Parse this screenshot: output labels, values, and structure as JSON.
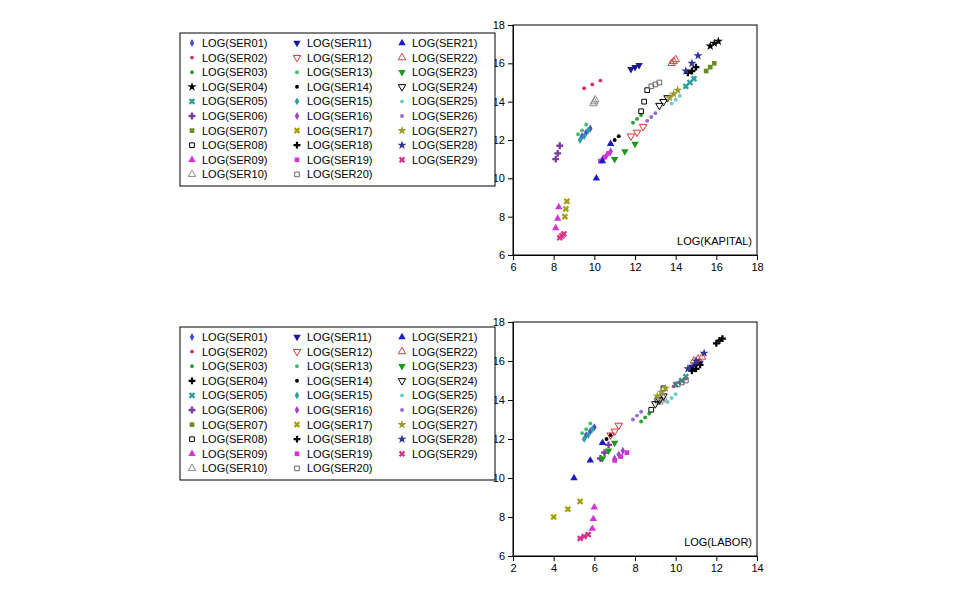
{
  "chart_data": [
    {
      "type": "scatter",
      "x_label": "LOG(KAPITAL)",
      "xlim": [
        6,
        18
      ],
      "ylim": [
        6,
        18
      ],
      "xticks": [
        6,
        8,
        10,
        12,
        14,
        16,
        18
      ],
      "yticks": [
        6,
        8,
        10,
        12,
        14,
        16,
        18
      ],
      "legend": "left",
      "series": [
        {
          "name": "LOG(SER01)",
          "color": "#4b4bd6",
          "marker": "diamond",
          "x": [
            9.4,
            9.6,
            9.8
          ],
          "values": [
            12.2,
            12.4,
            12.6
          ]
        },
        {
          "name": "LOG(SER02)",
          "color": "#d6336b",
          "marker": "dot",
          "x": [
            9.5,
            9.9,
            10.3
          ],
          "values": [
            14.7,
            14.9,
            15.1
          ]
        },
        {
          "name": "LOG(SER03)",
          "color": "#33a033",
          "marker": "dot",
          "x": [
            11.9,
            12.1,
            12.3
          ],
          "values": [
            12.9,
            13.1,
            13.3
          ]
        },
        {
          "name": "LOG(SER04)",
          "color": "#000000",
          "marker": "star",
          "x": [
            15.7,
            15.9,
            16.1
          ],
          "values": [
            16.9,
            17.05,
            17.15
          ]
        },
        {
          "name": "LOG(SER05)",
          "color": "#2a9d9d",
          "marker": "x",
          "x": [
            14.5,
            14.7,
            14.9
          ],
          "values": [
            14.8,
            15.0,
            15.2
          ]
        },
        {
          "name": "LOG(SER06)",
          "color": "#7a3aa0",
          "marker": "plus",
          "x": [
            8.1,
            8.2,
            8.3
          ],
          "values": [
            11.0,
            11.3,
            11.7
          ]
        },
        {
          "name": "LOG(SER07)",
          "color": "#6b8e23",
          "marker": "square",
          "x": [
            15.5,
            15.7,
            15.9
          ],
          "values": [
            15.6,
            15.8,
            16.0
          ]
        },
        {
          "name": "LOG(SER08)",
          "color": "#000000",
          "marker": "square-open",
          "x": [
            12.3,
            12.45,
            12.6
          ],
          "values": [
            13.5,
            14.0,
            14.6
          ]
        },
        {
          "name": "LOG(SER09)",
          "color": "#d633d6",
          "marker": "triangle",
          "x": [
            8.1,
            8.2,
            8.25
          ],
          "values": [
            7.4,
            7.9,
            8.5
          ]
        },
        {
          "name": "LOG(SER10)",
          "color": "#8c8c8c",
          "marker": "triangle-open",
          "x": [
            9.95,
            10.0,
            10.05
          ],
          "values": [
            13.9,
            14.0,
            14.1
          ]
        },
        {
          "name": "LOG(SER11)",
          "color": "#1a1a99",
          "marker": "triangle-down",
          "x": [
            11.8,
            12.0,
            12.2
          ],
          "values": [
            15.7,
            15.8,
            15.9
          ]
        },
        {
          "name": "LOG(SER12)",
          "color": "#e03030",
          "marker": "triangle-down-open",
          "x": [
            11.8,
            12.1,
            12.4
          ],
          "values": [
            12.2,
            12.4,
            12.7
          ]
        },
        {
          "name": "LOG(SER13)",
          "color": "#40c070",
          "marker": "dot",
          "x": [
            9.2,
            9.4,
            9.6
          ],
          "values": [
            12.3,
            12.5,
            12.8
          ]
        },
        {
          "name": "LOG(SER14)",
          "color": "#000000",
          "marker": "dot",
          "x": [
            10.8,
            11.0,
            11.2
          ],
          "values": [
            11.8,
            12.0,
            12.2
          ]
        },
        {
          "name": "LOG(SER15)",
          "color": "#2aa0a0",
          "marker": "diamond",
          "x": [
            9.3,
            9.5,
            9.7
          ],
          "values": [
            12.0,
            12.2,
            12.5
          ]
        },
        {
          "name": "LOG(SER16)",
          "color": "#a040d0",
          "marker": "diamond",
          "x": [
            10.4,
            10.6,
            10.8
          ],
          "values": [
            11.0,
            11.2,
            11.4
          ]
        },
        {
          "name": "LOG(SER17)",
          "color": "#a0a000",
          "marker": "x",
          "x": [
            8.55,
            8.6,
            8.65
          ],
          "values": [
            8.0,
            8.4,
            8.8
          ]
        },
        {
          "name": "LOG(SER18)",
          "color": "#000000",
          "marker": "plus",
          "x": [
            14.6,
            14.8,
            15.0
          ],
          "values": [
            15.5,
            15.6,
            15.8
          ]
        },
        {
          "name": "LOG(SER19)",
          "color": "#d633d6",
          "marker": "square",
          "x": [
            10.3,
            10.5,
            10.7
          ],
          "values": [
            10.9,
            11.1,
            11.3
          ]
        },
        {
          "name": "LOG(SER20)",
          "color": "#666666",
          "marker": "square-open",
          "x": [
            12.8,
            13.0,
            13.2
          ],
          "values": [
            14.8,
            14.9,
            15.0
          ]
        },
        {
          "name": "LOG(SER21)",
          "color": "#1a1acc",
          "marker": "triangle",
          "x": [
            10.1,
            10.4,
            10.8
          ],
          "values": [
            10.0,
            10.9,
            11.8
          ]
        },
        {
          "name": "LOG(SER22)",
          "color": "#d64040",
          "marker": "triangle-open",
          "x": [
            13.8,
            13.9,
            14.0
          ],
          "values": [
            16.0,
            16.1,
            16.2
          ]
        },
        {
          "name": "LOG(SER23)",
          "color": "#1a9a1a",
          "marker": "triangle-down",
          "x": [
            11.0,
            11.5,
            12.0
          ],
          "values": [
            11.0,
            11.4,
            11.8
          ]
        },
        {
          "name": "LOG(SER24)",
          "color": "#000000",
          "marker": "triangle-down-open",
          "x": [
            13.2,
            13.4,
            13.6
          ],
          "values": [
            13.8,
            14.0,
            14.2
          ]
        },
        {
          "name": "LOG(SER25)",
          "color": "#70c8c8",
          "marker": "dot",
          "x": [
            13.8,
            14.0,
            14.2
          ],
          "values": [
            13.9,
            14.1,
            14.3
          ]
        },
        {
          "name": "LOG(SER26)",
          "color": "#9a6ad0",
          "marker": "dot",
          "x": [
            12.6,
            12.8,
            13.0
          ],
          "values": [
            13.0,
            13.2,
            13.4
          ]
        },
        {
          "name": "LOG(SER27)",
          "color": "#9a9a30",
          "marker": "star",
          "x": [
            13.7,
            13.9,
            14.1
          ],
          "values": [
            14.2,
            14.4,
            14.6
          ]
        },
        {
          "name": "LOG(SER28)",
          "color": "#33339a",
          "marker": "star",
          "x": [
            14.5,
            14.8,
            15.1
          ],
          "values": [
            15.6,
            16.0,
            16.4
          ]
        },
        {
          "name": "LOG(SER29)",
          "color": "#d6338a",
          "marker": "x",
          "x": [
            8.3,
            8.4,
            8.5
          ],
          "values": [
            6.9,
            7.0,
            7.1
          ]
        }
      ]
    },
    {
      "type": "scatter",
      "x_label": "LOG(LABOR)",
      "xlim": [
        2,
        14
      ],
      "ylim": [
        6,
        18
      ],
      "xticks": [
        2,
        4,
        6,
        8,
        10,
        12,
        14
      ],
      "yticks": [
        6,
        8,
        10,
        12,
        14,
        16,
        18
      ],
      "legend": "left",
      "series": [
        {
          "name": "LOG(SER01)",
          "color": "#4b4bd6",
          "marker": "diamond",
          "x": [
            5.6,
            5.8,
            6.0
          ],
          "values": [
            12.2,
            12.4,
            12.6
          ]
        },
        {
          "name": "LOG(SER02)",
          "color": "#d6336b",
          "marker": "dot",
          "x": [
            9.9,
            10.2,
            10.5
          ],
          "values": [
            14.7,
            14.9,
            15.1
          ]
        },
        {
          "name": "LOG(SER03)",
          "color": "#33a033",
          "marker": "dot",
          "x": [
            8.3,
            8.5,
            8.7
          ],
          "values": [
            12.9,
            13.1,
            13.3
          ]
        },
        {
          "name": "LOG(SER04)",
          "color": "#000000",
          "marker": "plus",
          "x": [
            12.0,
            12.15,
            12.3
          ],
          "values": [
            16.9,
            17.05,
            17.15
          ]
        },
        {
          "name": "LOG(SER05)",
          "color": "#2a9d9d",
          "marker": "x",
          "x": [
            10.0,
            10.3,
            10.5
          ],
          "values": [
            14.8,
            15.0,
            15.2
          ]
        },
        {
          "name": "LOG(SER06)",
          "color": "#7a3aa0",
          "marker": "plus",
          "x": [
            6.3,
            6.5,
            6.7
          ],
          "values": [
            11.0,
            11.3,
            11.7
          ]
        },
        {
          "name": "LOG(SER07)",
          "color": "#6b8e23",
          "marker": "square",
          "x": [
            10.7,
            10.9,
            11.1
          ],
          "values": [
            15.6,
            15.8,
            16.0
          ]
        },
        {
          "name": "LOG(SER08)",
          "color": "#000000",
          "marker": "square-open",
          "x": [
            8.8,
            9.1,
            9.4
          ],
          "values": [
            13.5,
            14.0,
            14.6
          ]
        },
        {
          "name": "LOG(SER09)",
          "color": "#d633d6",
          "marker": "triangle",
          "x": [
            5.9,
            5.95,
            6.0
          ],
          "values": [
            7.4,
            7.9,
            8.5
          ]
        },
        {
          "name": "LOG(SER10)",
          "color": "#8c8c8c",
          "marker": "triangle-open",
          "x": [
            9.2,
            9.3,
            9.4
          ],
          "values": [
            13.9,
            14.0,
            14.1
          ]
        },
        {
          "name": "LOG(SER11)",
          "color": "#1a1a99",
          "marker": "triangle-down",
          "x": [
            10.8,
            11.0,
            11.2
          ],
          "values": [
            15.7,
            15.8,
            15.9
          ]
        },
        {
          "name": "LOG(SER12)",
          "color": "#e03030",
          "marker": "triangle-down-open",
          "x": [
            6.8,
            7.0,
            7.2
          ],
          "values": [
            12.2,
            12.4,
            12.7
          ]
        },
        {
          "name": "LOG(SER13)",
          "color": "#40c070",
          "marker": "dot",
          "x": [
            5.4,
            5.6,
            5.8
          ],
          "values": [
            12.3,
            12.5,
            12.8
          ]
        },
        {
          "name": "LOG(SER14)",
          "color": "#000000",
          "marker": "dot",
          "x": [
            6.4,
            6.6,
            6.8
          ],
          "values": [
            11.8,
            12.0,
            12.2
          ]
        },
        {
          "name": "LOG(SER15)",
          "color": "#2aa0a0",
          "marker": "diamond",
          "x": [
            5.5,
            5.7,
            5.9
          ],
          "values": [
            12.0,
            12.2,
            12.5
          ]
        },
        {
          "name": "LOG(SER16)",
          "color": "#a040d0",
          "marker": "diamond",
          "x": [
            7.0,
            7.2,
            7.4
          ],
          "values": [
            11.0,
            11.2,
            11.4
          ]
        },
        {
          "name": "LOG(SER17)",
          "color": "#a0a000",
          "marker": "x",
          "x": [
            4.0,
            4.7,
            5.3
          ],
          "values": [
            8.0,
            8.4,
            8.8
          ]
        },
        {
          "name": "LOG(SER18)",
          "color": "#000000",
          "marker": "plus",
          "x": [
            10.8,
            11.0,
            11.2
          ],
          "values": [
            15.5,
            15.6,
            15.8
          ]
        },
        {
          "name": "LOG(SER19)",
          "color": "#d633d6",
          "marker": "square",
          "x": [
            7.0,
            7.3,
            7.6
          ],
          "values": [
            10.9,
            11.1,
            11.3
          ]
        },
        {
          "name": "LOG(SER20)",
          "color": "#666666",
          "marker": "square-open",
          "x": [
            10.1,
            10.3,
            10.5
          ],
          "values": [
            14.8,
            14.9,
            15.0
          ]
        },
        {
          "name": "LOG(SER21)",
          "color": "#1a1acc",
          "marker": "triangle",
          "x": [
            5.0,
            5.8,
            6.4
          ],
          "values": [
            10.0,
            10.9,
            11.8
          ]
        },
        {
          "name": "LOG(SER22)",
          "color": "#d64040",
          "marker": "triangle-open",
          "x": [
            10.9,
            11.1,
            11.3
          ],
          "values": [
            16.0,
            16.1,
            16.2
          ]
        },
        {
          "name": "LOG(SER23)",
          "color": "#1a9a1a",
          "marker": "triangle-down",
          "x": [
            6.4,
            6.7,
            7.0
          ],
          "values": [
            11.0,
            11.4,
            11.8
          ]
        },
        {
          "name": "LOG(SER24)",
          "color": "#000000",
          "marker": "triangle-down-open",
          "x": [
            9.0,
            9.2,
            9.4
          ],
          "values": [
            13.8,
            14.0,
            14.2
          ]
        },
        {
          "name": "LOG(SER25)",
          "color": "#70c8c8",
          "marker": "dot",
          "x": [
            9.6,
            9.8,
            10.0
          ],
          "values": [
            13.9,
            14.1,
            14.3
          ]
        },
        {
          "name": "LOG(SER26)",
          "color": "#9a6ad0",
          "marker": "dot",
          "x": [
            7.9,
            8.1,
            8.3
          ],
          "values": [
            13.0,
            13.2,
            13.4
          ]
        },
        {
          "name": "LOG(SER27)",
          "color": "#9a9a30",
          "marker": "star",
          "x": [
            9.1,
            9.3,
            9.5
          ],
          "values": [
            14.2,
            14.4,
            14.6
          ]
        },
        {
          "name": "LOG(SER28)",
          "color": "#33339a",
          "marker": "star",
          "x": [
            10.6,
            11.0,
            11.4
          ],
          "values": [
            15.6,
            16.0,
            16.4
          ]
        },
        {
          "name": "LOG(SER29)",
          "color": "#d6338a",
          "marker": "x",
          "x": [
            5.3,
            5.5,
            5.7
          ],
          "values": [
            6.9,
            7.0,
            7.1
          ]
        }
      ]
    }
  ]
}
